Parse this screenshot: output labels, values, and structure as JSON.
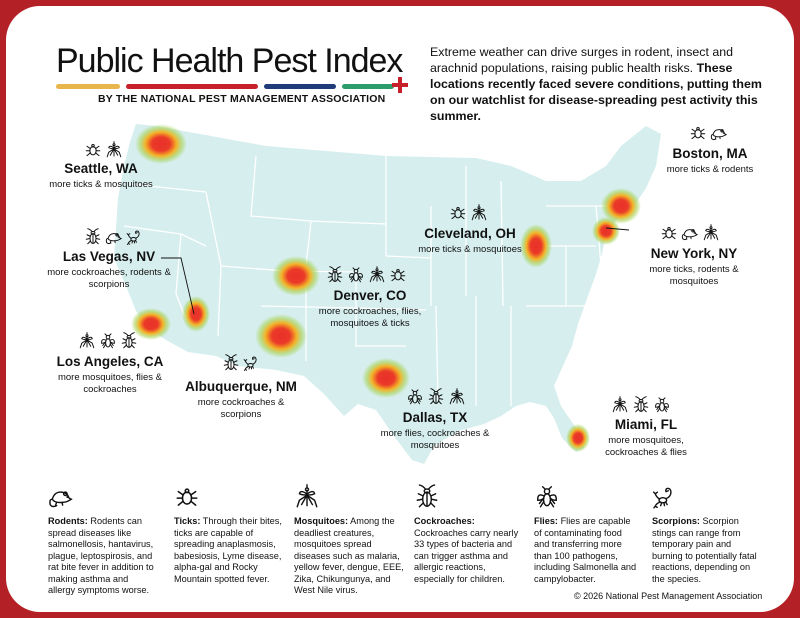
{
  "header": {
    "title": "Public Health Pest Index",
    "byline": "BY THE NATIONAL PEST MANAGEMENT ASSOCIATION",
    "intro_plain": "Extreme weather can drive surges in rodent, insect and arachnid populations, raising public health risks. ",
    "intro_bold": "These locations recently faced severe conditions, putting them on our watchlist for disease-spreading pest activity this summer.",
    "bar_colors": [
      "#e8b64c",
      "#c8202a",
      "#1f3b7a",
      "#2a9d6b"
    ]
  },
  "colors": {
    "frame": "#b32025",
    "land": "#d6eeee",
    "border_line": "#ffffff",
    "hotspot_core": "#e8302a",
    "hotspot_mid": "#f4b328",
    "hotspot_edge": "#a8d45a"
  },
  "cities": [
    {
      "id": "seattle",
      "name": "Seattle, WA",
      "desc": "more ticks & mosquitoes",
      "icons": [
        "tick-icon",
        "mosquito-icon"
      ]
    },
    {
      "id": "lasvegas",
      "name": "Las Vegas, NV",
      "desc": "more cockroaches, rodents & scorpions",
      "icons": [
        "cockroach-icon",
        "rodent-icon",
        "scorpion-icon"
      ]
    },
    {
      "id": "losangeles",
      "name": "Los Angeles, CA",
      "desc": "more mosquitoes, flies & cockroaches",
      "icons": [
        "mosquito-icon",
        "fly-icon",
        "cockroach-icon"
      ]
    },
    {
      "id": "albuquerque",
      "name": "Albuquerque, NM",
      "desc": "more cockroaches & scorpions",
      "icons": [
        "cockroach-icon",
        "scorpion-icon"
      ]
    },
    {
      "id": "denver",
      "name": "Denver, CO",
      "desc": "more cockroaches, flies, mosquitoes & ticks",
      "icons": [
        "cockroach-icon",
        "fly-icon",
        "mosquito-icon",
        "tick-icon"
      ]
    },
    {
      "id": "dallas",
      "name": "Dallas, TX",
      "desc": "more flies, cockroaches & mosquitoes",
      "icons": [
        "fly-icon",
        "cockroach-icon",
        "mosquito-icon"
      ]
    },
    {
      "id": "cleveland",
      "name": "Cleveland, OH",
      "desc": "more ticks & mosquitoes",
      "icons": [
        "tick-icon",
        "mosquito-icon"
      ]
    },
    {
      "id": "boston",
      "name": "Boston, MA",
      "desc": "more ticks & rodents",
      "icons": [
        "tick-icon",
        "rodent-icon"
      ]
    },
    {
      "id": "newyork",
      "name": "New York, NY",
      "desc": "more ticks, rodents & mosquitoes",
      "icons": [
        "tick-icon",
        "rodent-icon",
        "mosquito-icon"
      ]
    },
    {
      "id": "miami",
      "name": "Miami, FL",
      "desc": "more mosquitoes, cockroaches & flies",
      "icons": [
        "mosquito-icon",
        "cockroach-icon",
        "fly-icon"
      ]
    }
  ],
  "legend": [
    {
      "icon": "rodent-icon",
      "title": "Rodents:",
      "text": "Rodents can spread diseases like salmonellosis, hantavirus, plague, leptospirosis, and rat bite fever in addition to making asthma and allergy symptoms worse."
    },
    {
      "icon": "tick-icon",
      "title": "Ticks:",
      "text": "Through their bites, ticks are capable of spreading anaplasmosis, babesiosis, Lyme disease, alpha-gal and Rocky Mountain spotted fever."
    },
    {
      "icon": "mosquito-icon",
      "title": "Mosquitoes:",
      "text": "Among the deadliest creatures, mosquitoes spread diseases such as malaria, yellow fever, dengue, EEE, Zika, Chikungunya, and West Nile virus."
    },
    {
      "icon": "cockroach-icon",
      "title": "Cockroaches:",
      "text": "Cockroaches carry nearly 33 types of bacteria and can trigger asthma and allergic reactions, especially for children."
    },
    {
      "icon": "fly-icon",
      "title": "Flies:",
      "text": "Flies are capable of contaminating food and transferring more than 100 pathogens, including Salmonella and campylobacter."
    },
    {
      "icon": "scorpion-icon",
      "title": "Scorpions:",
      "text": "Scorpion stings can range from temporary pain and burning to potentially fatal reactions, depending on the species."
    }
  ],
  "footer": {
    "copyright": "© 2026 National Pest Management Association"
  }
}
